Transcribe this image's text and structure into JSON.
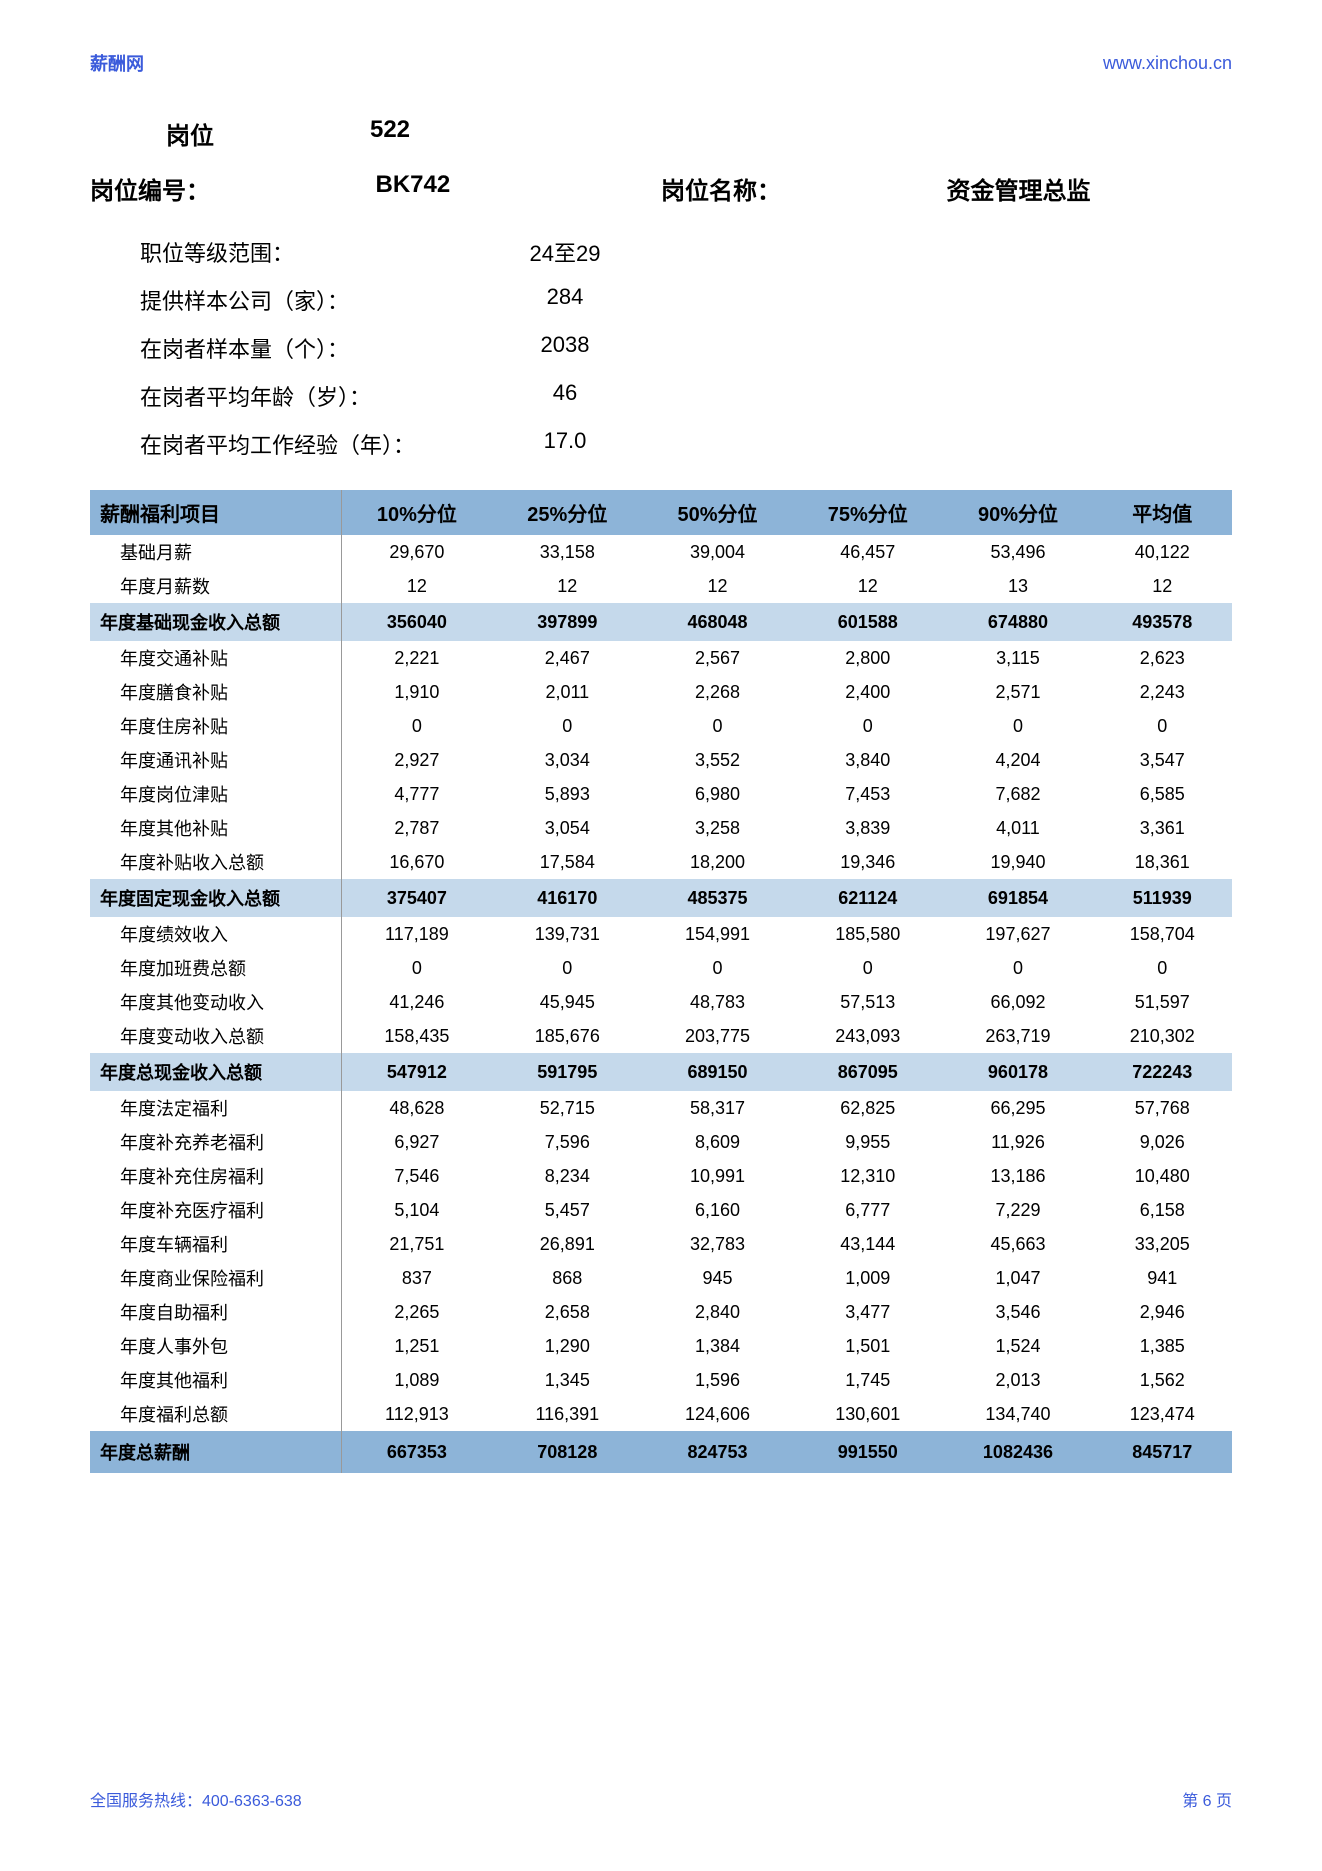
{
  "header": {
    "site_name": "薪酬网",
    "site_url": "www.xinchou.cn"
  },
  "position": {
    "label": "岗位",
    "value": "522",
    "id_label": "岗位编号：",
    "id_value": "BK742",
    "name_label": "岗位名称：",
    "name_value": "资金管理总监"
  },
  "info": [
    {
      "label": "职位等级范围：",
      "value": "24至29"
    },
    {
      "label": "提供样本公司（家）：",
      "value": "284"
    },
    {
      "label": "在岗者样本量（个）：",
      "value": "2038"
    },
    {
      "label": "在岗者平均年龄（岁）：",
      "value": "46"
    },
    {
      "label": "在岗者平均工作经验（年）：",
      "value": "17.0"
    }
  ],
  "columns": [
    "薪酬福利项目",
    "10%分位",
    "25%分位",
    "50%分位",
    "75%分位",
    "90%分位",
    "平均值"
  ],
  "sections": [
    {
      "rows": [
        {
          "label": "基础月薪",
          "v": [
            "29,670",
            "33,158",
            "39,004",
            "46,457",
            "53,496",
            "40,122"
          ]
        },
        {
          "label": "年度月薪数",
          "v": [
            "12",
            "12",
            "12",
            "12",
            "13",
            "12"
          ]
        }
      ],
      "subtotal": {
        "label": "年度基础现金收入总额",
        "v": [
          "356040",
          "397899",
          "468048",
          "601588",
          "674880",
          "493578"
        ]
      }
    },
    {
      "rows": [
        {
          "label": "年度交通补贴",
          "v": [
            "2,221",
            "2,467",
            "2,567",
            "2,800",
            "3,115",
            "2,623"
          ]
        },
        {
          "label": "年度膳食补贴",
          "v": [
            "1,910",
            "2,011",
            "2,268",
            "2,400",
            "2,571",
            "2,243"
          ]
        },
        {
          "label": "年度住房补贴",
          "v": [
            "0",
            "0",
            "0",
            "0",
            "0",
            "0"
          ]
        },
        {
          "label": "年度通讯补贴",
          "v": [
            "2,927",
            "3,034",
            "3,552",
            "3,840",
            "4,204",
            "3,547"
          ]
        },
        {
          "label": "年度岗位津贴",
          "v": [
            "4,777",
            "5,893",
            "6,980",
            "7,453",
            "7,682",
            "6,585"
          ]
        },
        {
          "label": "年度其他补贴",
          "v": [
            "2,787",
            "3,054",
            "3,258",
            "3,839",
            "4,011",
            "3,361"
          ]
        },
        {
          "label": "年度补贴收入总额",
          "v": [
            "16,670",
            "17,584",
            "18,200",
            "19,346",
            "19,940",
            "18,361"
          ]
        }
      ],
      "subtotal": {
        "label": "年度固定现金收入总额",
        "v": [
          "375407",
          "416170",
          "485375",
          "621124",
          "691854",
          "511939"
        ]
      }
    },
    {
      "rows": [
        {
          "label": "年度绩效收入",
          "v": [
            "117,189",
            "139,731",
            "154,991",
            "185,580",
            "197,627",
            "158,704"
          ]
        },
        {
          "label": "年度加班费总额",
          "v": [
            "0",
            "0",
            "0",
            "0",
            "0",
            "0"
          ]
        },
        {
          "label": "年度其他变动收入",
          "v": [
            "41,246",
            "45,945",
            "48,783",
            "57,513",
            "66,092",
            "51,597"
          ]
        },
        {
          "label": "年度变动收入总额",
          "v": [
            "158,435",
            "185,676",
            "203,775",
            "243,093",
            "263,719",
            "210,302"
          ]
        }
      ],
      "subtotal": {
        "label": "年度总现金收入总额",
        "v": [
          "547912",
          "591795",
          "689150",
          "867095",
          "960178",
          "722243"
        ]
      }
    },
    {
      "rows": [
        {
          "label": "年度法定福利",
          "v": [
            "48,628",
            "52,715",
            "58,317",
            "62,825",
            "66,295",
            "57,768"
          ]
        },
        {
          "label": "年度补充养老福利",
          "v": [
            "6,927",
            "7,596",
            "8,609",
            "9,955",
            "11,926",
            "9,026"
          ]
        },
        {
          "label": "年度补充住房福利",
          "v": [
            "7,546",
            "8,234",
            "10,991",
            "12,310",
            "13,186",
            "10,480"
          ]
        },
        {
          "label": "年度补充医疗福利",
          "v": [
            "5,104",
            "5,457",
            "6,160",
            "6,777",
            "7,229",
            "6,158"
          ]
        },
        {
          "label": "年度车辆福利",
          "v": [
            "21,751",
            "26,891",
            "32,783",
            "43,144",
            "45,663",
            "33,205"
          ]
        },
        {
          "label": "年度商业保险福利",
          "v": [
            "837",
            "868",
            "945",
            "1,009",
            "1,047",
            "941"
          ]
        },
        {
          "label": "年度自助福利",
          "v": [
            "2,265",
            "2,658",
            "2,840",
            "3,477",
            "3,546",
            "2,946"
          ]
        },
        {
          "label": "年度人事外包",
          "v": [
            "1,251",
            "1,290",
            "1,384",
            "1,501",
            "1,524",
            "1,385"
          ]
        },
        {
          "label": "年度其他福利",
          "v": [
            "1,089",
            "1,345",
            "1,596",
            "1,745",
            "2,013",
            "1,562"
          ]
        },
        {
          "label": "年度福利总额",
          "v": [
            "112,913",
            "116,391",
            "124,606",
            "130,601",
            "134,740",
            "123,474"
          ]
        }
      ],
      "subtotal": null
    }
  ],
  "grand": {
    "label": "年度总薪酬",
    "v": [
      "667353",
      "708128",
      "824753",
      "991550",
      "1082436",
      "845717"
    ]
  },
  "footer": {
    "hotline": "全国服务热线：400-6363-638",
    "page": "第 6 页"
  },
  "colors": {
    "header_bg": "#8db4d8",
    "subtotal_bg": "#c5d9eb",
    "link": "#3b5bdb",
    "text": "#000000",
    "bg": "#ffffff"
  }
}
